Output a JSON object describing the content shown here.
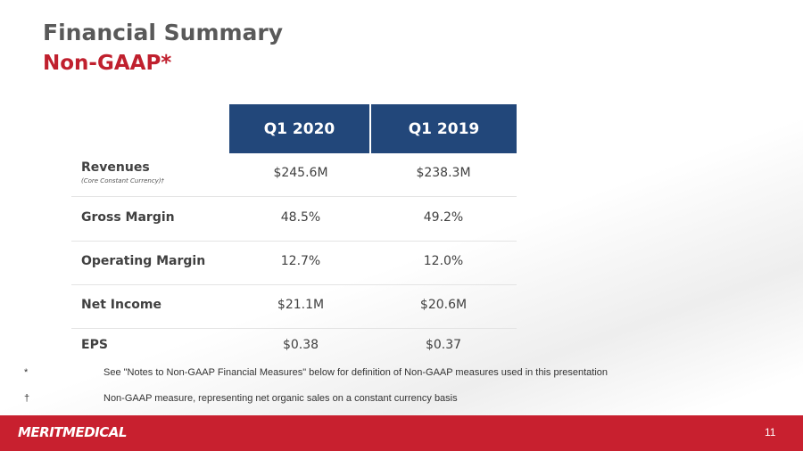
{
  "header": {
    "title": "Financial Summary",
    "subtitle": "Non-GAAP*"
  },
  "table": {
    "columns": [
      "Q1 2020",
      "Q1 2019"
    ],
    "rows": [
      {
        "label": "Revenues",
        "note": "(Core Constant Currency)†",
        "values": [
          "$245.6M",
          "$238.3M"
        ]
      },
      {
        "label": "Gross Margin",
        "values": [
          "48.5%",
          "49.2%"
        ]
      },
      {
        "label": "Operating Margin",
        "values": [
          "12.7%",
          "12.0%"
        ]
      },
      {
        "label": "Net Income",
        "values": [
          "$21.1M",
          "$20.6M"
        ]
      },
      {
        "label": "EPS",
        "values": [
          "$0.38",
          "$0.37"
        ]
      }
    ]
  },
  "footnotes": [
    {
      "marker": "*",
      "text": "See \"Notes to Non-GAAP Financial Measures\" below for definition of Non-GAAP measures used in this presentation"
    },
    {
      "marker": "†",
      "text": "Non-GAAP measure, representing net organic sales on a constant currency basis"
    }
  ],
  "footer": {
    "logo": "MERITMEDICAL",
    "page": "11"
  }
}
